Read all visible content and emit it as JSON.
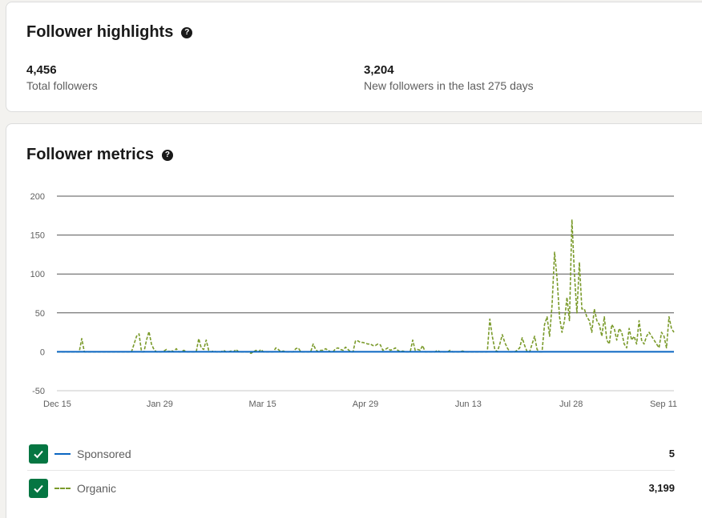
{
  "highlights": {
    "title": "Follower highlights",
    "help_icon": "question-circle-icon",
    "stats": [
      {
        "value": "4,456",
        "label": "Total followers"
      },
      {
        "value": "3,204",
        "label": "New followers in the last 275 days"
      }
    ]
  },
  "metrics": {
    "title": "Follower metrics",
    "help_icon": "question-circle-icon",
    "legend": [
      {
        "name": "Sponsored",
        "value": "5",
        "color": "#0a66c2",
        "style": "solid",
        "checked": true
      },
      {
        "name": "Organic",
        "value": "3,199",
        "color": "#7a9a2a",
        "style": "dashed",
        "checked": true
      }
    ]
  },
  "chart_data": {
    "type": "line",
    "x_tick_labels": [
      "Dec 15",
      "Jan 29",
      "Mar 15",
      "Apr 29",
      "Jun 13",
      "Jul 28",
      "Sep 11"
    ],
    "y_ticks": [
      200,
      150,
      100,
      50,
      0,
      -50
    ],
    "ylim": [
      -50,
      200
    ],
    "grid": true,
    "series": [
      {
        "name": "Sponsored",
        "color": "#0a66c2",
        "values": [
          0,
          0,
          0,
          0,
          0,
          0,
          0,
          0,
          0,
          0,
          0,
          0,
          0,
          0,
          0,
          0,
          0,
          0,
          0,
          0,
          0,
          0,
          0,
          0,
          0,
          0,
          0,
          0,
          0,
          0,
          0,
          0,
          0,
          0,
          0,
          0,
          0,
          0,
          0,
          0,
          0,
          0,
          0,
          0,
          0,
          0,
          0,
          0,
          0,
          0,
          0,
          0,
          0,
          0,
          0,
          0,
          0,
          0,
          0,
          0,
          0,
          0,
          0,
          0,
          0,
          0,
          0,
          0,
          0,
          0,
          0,
          0,
          0,
          0,
          0,
          0,
          0,
          0,
          0,
          0,
          0,
          0,
          0,
          0,
          0,
          0,
          0,
          0,
          0,
          0,
          0,
          0,
          0,
          0,
          0,
          0,
          0,
          0,
          0,
          0,
          0,
          0,
          0,
          0,
          0,
          0,
          0,
          0,
          0,
          0,
          0,
          0,
          0,
          0,
          0,
          0,
          0,
          0,
          0,
          0,
          0,
          0,
          0,
          0,
          0,
          0,
          0,
          0,
          0,
          0,
          0,
          0,
          0,
          0,
          0,
          0,
          0,
          0,
          0,
          0,
          0,
          0,
          0,
          0,
          0,
          0,
          0,
          0,
          0,
          0,
          0,
          0,
          0,
          0,
          0,
          0,
          0,
          0,
          0,
          0,
          0,
          0,
          0,
          0,
          0,
          0,
          0,
          0,
          0,
          0,
          0,
          0,
          0,
          0,
          0,
          0,
          0,
          0,
          0,
          0,
          0,
          0,
          0,
          0,
          0,
          0,
          0,
          0,
          0,
          0,
          0,
          0,
          0,
          0,
          0,
          0,
          0,
          0,
          0,
          0,
          0,
          0,
          0,
          0,
          0,
          0,
          0,
          0,
          0,
          0,
          0,
          0,
          0,
          0,
          0,
          0,
          0,
          0,
          0,
          0,
          0,
          0,
          0,
          0,
          0,
          0,
          0,
          0,
          0,
          0,
          0,
          0,
          0,
          0,
          0,
          0,
          0,
          0,
          0,
          0,
          0,
          0,
          0,
          0,
          0,
          0,
          0,
          0,
          0,
          0,
          0,
          0,
          0,
          0,
          0,
          0,
          0,
          0,
          0,
          0,
          0,
          0,
          0,
          0,
          0,
          0,
          0,
          0,
          0,
          0,
          0,
          0,
          0,
          0,
          0,
          0,
          0,
          0,
          0,
          0
        ]
      },
      {
        "name": "Organic",
        "color": "#7a9a2a",
        "values": [
          0,
          0,
          0,
          0,
          0,
          0,
          0,
          0,
          0,
          0,
          17,
          0,
          0,
          0,
          0,
          0,
          0,
          0,
          0,
          0,
          0,
          0,
          0,
          0,
          0,
          0,
          0,
          0,
          0,
          0,
          0,
          10,
          20,
          23,
          0,
          0,
          15,
          26,
          10,
          3,
          0,
          0,
          0,
          1,
          3,
          0,
          2,
          0,
          4,
          0,
          0,
          2,
          0,
          0,
          0,
          0,
          0,
          17,
          5,
          3,
          15,
          2,
          0,
          1,
          0,
          0,
          0,
          2,
          0,
          0,
          1,
          0,
          3,
          0,
          0,
          0,
          0,
          0,
          -2,
          0,
          2,
          0,
          3,
          0,
          0,
          0,
          0,
          0,
          5,
          3,
          0,
          1,
          0,
          0,
          0,
          0,
          4,
          5,
          0,
          0,
          0,
          0,
          0,
          10,
          3,
          0,
          2,
          2,
          4,
          2,
          0,
          0,
          4,
          5,
          3,
          2,
          6,
          3,
          0,
          0,
          14,
          14,
          12,
          12,
          11,
          10,
          10,
          8,
          8,
          10,
          9,
          2,
          3,
          5,
          2,
          3,
          5,
          2,
          0,
          1,
          0,
          0,
          0,
          15,
          2,
          3,
          2,
          8,
          0,
          0,
          0,
          0,
          0,
          2,
          0,
          0,
          0,
          0,
          2,
          0,
          0,
          0,
          0,
          1,
          0,
          0,
          0,
          0,
          0,
          0,
          0,
          0,
          0,
          0,
          42,
          20,
          3,
          0,
          10,
          22,
          12,
          5,
          0,
          0,
          0,
          2,
          5,
          18,
          8,
          0,
          0,
          10,
          20,
          3,
          0,
          0,
          35,
          45,
          20,
          60,
          128,
          95,
          45,
          25,
          40,
          70,
          40,
          170,
          100,
          50,
          115,
          55,
          55,
          45,
          40,
          25,
          55,
          40,
          35,
          20,
          45,
          15,
          10,
          35,
          30,
          15,
          30,
          25,
          10,
          5,
          30,
          15,
          20,
          10,
          40,
          15,
          10,
          20,
          25,
          20,
          15,
          10,
          5,
          25,
          20,
          5,
          45,
          30,
          25
        ]
      }
    ]
  }
}
